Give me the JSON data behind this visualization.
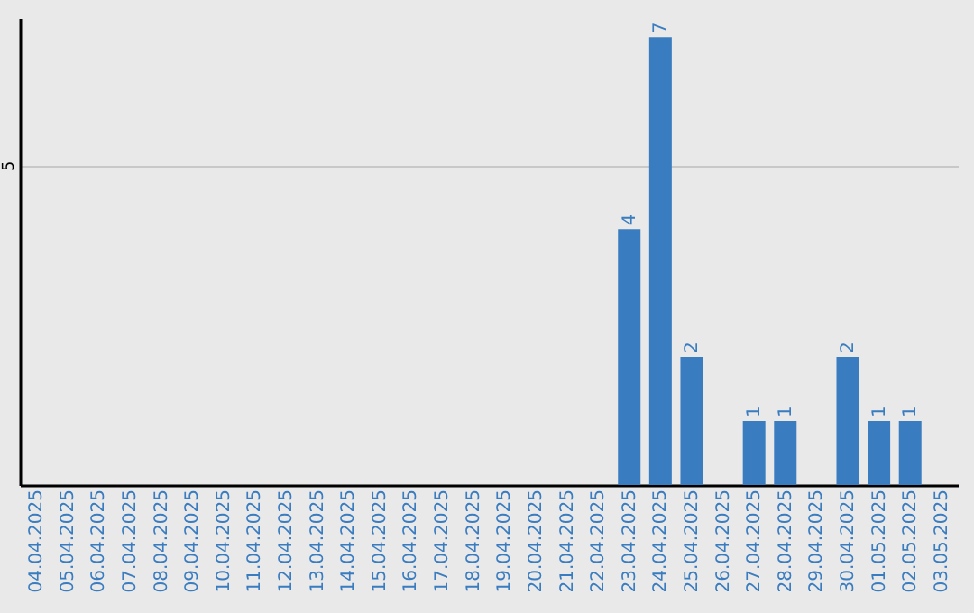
{
  "chart_data": {
    "type": "bar",
    "categories": [
      "04.04.2025",
      "05.04.2025",
      "06.04.2025",
      "07.04.2025",
      "08.04.2025",
      "09.04.2025",
      "10.04.2025",
      "11.04.2025",
      "12.04.2025",
      "13.04.2025",
      "14.04.2025",
      "15.04.2025",
      "16.04.2025",
      "17.04.2025",
      "18.04.2025",
      "19.04.2025",
      "20.04.2025",
      "21.04.2025",
      "22.04.2025",
      "23.04.2025",
      "24.04.2025",
      "25.04.2025",
      "26.04.2025",
      "27.04.2025",
      "28.04.2025",
      "29.04.2025",
      "30.04.2025",
      "01.05.2025",
      "02.05.2025",
      "03.05.2025"
    ],
    "values": [
      null,
      null,
      null,
      null,
      null,
      null,
      null,
      null,
      null,
      null,
      null,
      null,
      null,
      null,
      null,
      null,
      null,
      null,
      null,
      4,
      7,
      2,
      null,
      1,
      1,
      null,
      2,
      1,
      1,
      null
    ],
    "data_labels": true,
    "color": "#3a7cc0",
    "ylim": [
      0,
      7.3
    ],
    "yticks": [
      5
    ],
    "grid": "y"
  }
}
